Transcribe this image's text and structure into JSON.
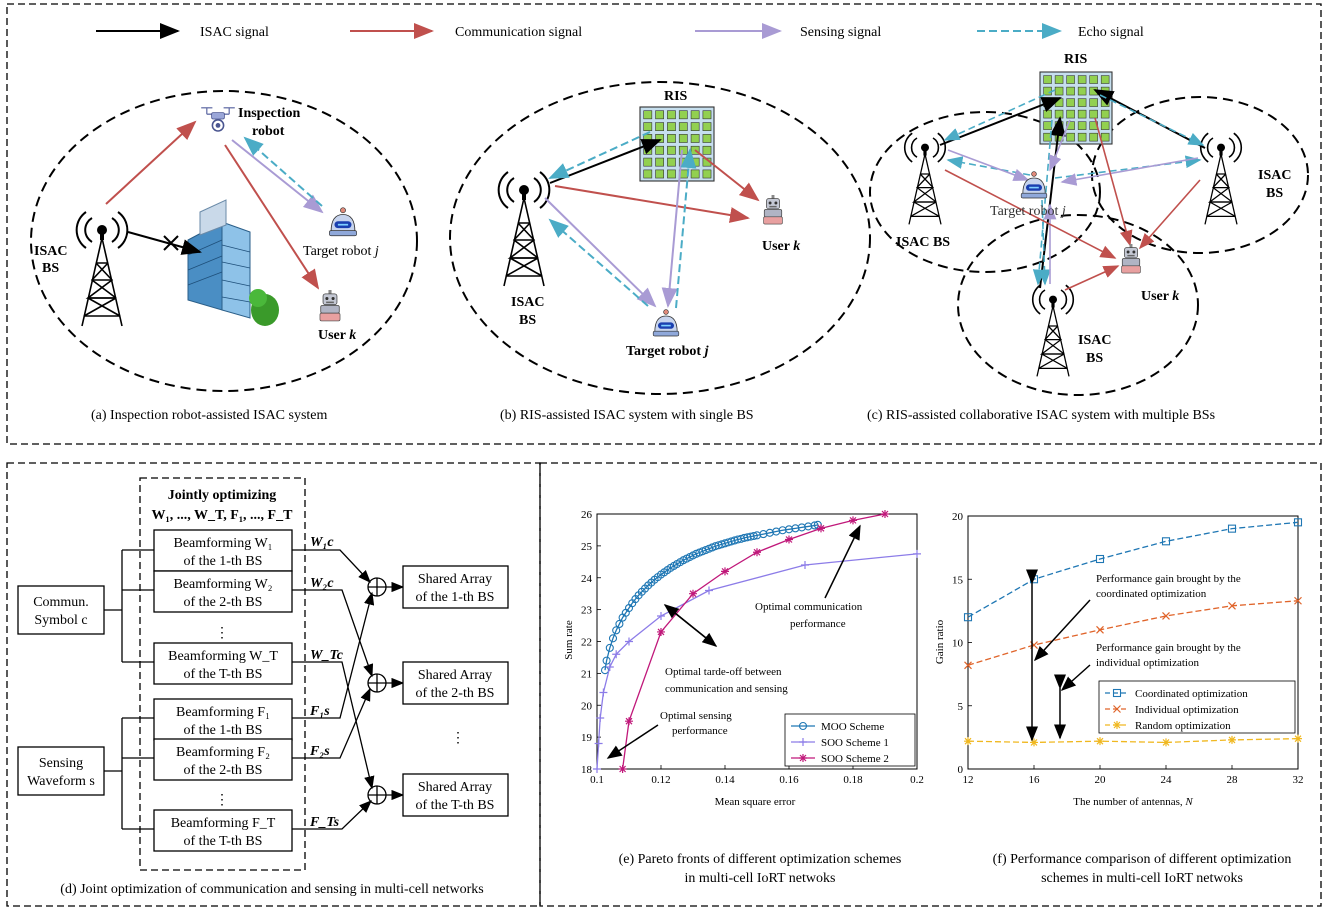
{
  "legend": {
    "isac": "ISAC signal",
    "comm": "Communication signal",
    "sensing": "Sensing signal",
    "echo": "Echo signal"
  },
  "colors": {
    "isac": "#000000",
    "comm": "#c0504d",
    "sensing": "#a99bd4",
    "echo": "#4bacc6",
    "ris_fill": "#92d050",
    "ris_bg": "#c6dfee",
    "moo": "#1f77b4",
    "soo1": "#8c7ce8",
    "soo2": "#c0187a",
    "coord": "#1f77b4",
    "indiv": "#e0642a",
    "random": "#f0b820"
  },
  "panel_a": {
    "inspection_label_1": "Inspection",
    "inspection_label_2": "robot",
    "bs_label_1": "ISAC",
    "bs_label_2": "BS",
    "target": "Target robot",
    "target_var": "j",
    "user": "User",
    "user_var": "k",
    "caption": "(a) Inspection robot-assisted ISAC system"
  },
  "panel_b": {
    "ris": "RIS",
    "bs_label_1": "ISAC",
    "bs_label_2": "BS",
    "user": "User",
    "user_var": "k",
    "target": "Target robot",
    "target_var": "j",
    "caption": "(b) RIS-assisted ISAC system with single BS"
  },
  "panel_c": {
    "ris": "RIS",
    "bs_left": "ISAC BS",
    "bs_right_1": "ISAC",
    "bs_right_2": "BS",
    "bs_bottom_1": "ISAC",
    "bs_bottom_2": "BS",
    "target": "Target robot",
    "target_var": "j",
    "user": "User",
    "user_var": "k",
    "caption": "(c) RIS-assisted collaborative ISAC system with multiple BSs"
  },
  "panel_d": {
    "jointly_1": "Jointly optimizing",
    "jointly_2": "W₁, ..., W_T, F₁, ..., F_T",
    "comm_sym_1": "Commun.",
    "comm_sym_2": "Symbol c",
    "sens_wave_1": "Sensing",
    "sens_wave_2": "Waveform s",
    "bf_blocks": [
      {
        "l1": "Beamforming W₁",
        "l2": "of the 1-th BS",
        "out": "W₁c"
      },
      {
        "l1": "Beamforming W₂",
        "l2": "of the 2-th BS",
        "out": "W₂c"
      },
      {
        "l1": "Beamforming W_T",
        "l2": "of the T-th BS",
        "out": "W_Tc"
      },
      {
        "l1": "Beamforming F₁",
        "l2": "of the 1-th BS",
        "out": "F₁s"
      },
      {
        "l1": "Beamforming F₂",
        "l2": "of the 2-th BS",
        "out": "F₂s"
      },
      {
        "l1": "Beamforming F_T",
        "l2": "of the T-th BS",
        "out": "F_Ts"
      }
    ],
    "arrays": [
      {
        "l1": "Shared Array",
        "l2": "of the 1-th BS"
      },
      {
        "l1": "Shared Array",
        "l2": "of the 2-th BS"
      },
      {
        "l1": "Shared Array",
        "l2": "of the T-th BS"
      }
    ],
    "caption": "(d) Joint optimization of communication and sensing in multi-cell networks"
  },
  "panel_e": {
    "caption_1": "(e) Pareto fronts of different optimization schemes",
    "caption_2": "in multi-cell IoRT netwoks",
    "annot_comm_1": "Optimal communication",
    "annot_comm_2": "performance",
    "annot_trade_1": "Optimal tarde-off between",
    "annot_trade_2": "communication and sensing",
    "annot_sens_1": "Optimal sensing",
    "annot_sens_2": "performance"
  },
  "panel_f": {
    "caption_1": "(f) Performance comparison of different optimization",
    "caption_2": "schemes in multi-cell IoRT netwoks",
    "annot_coord_1": "Performance gain brought by the",
    "annot_coord_2": "coordinated optimization",
    "annot_indiv_1": "Performance gain brought by the",
    "annot_indiv_2": "individual optimization"
  },
  "chart_data": [
    {
      "type": "line",
      "xlabel": "Mean square error",
      "ylabel": "Sum rate",
      "xlim": [
        0.1,
        0.2
      ],
      "ylim": [
        18,
        26
      ],
      "xticks": [
        "0.1",
        "0.12",
        "0.14",
        "0.16",
        "0.18",
        "0.2"
      ],
      "yticks": [
        "18",
        "19",
        "20",
        "21",
        "22",
        "23",
        "24",
        "25",
        "26"
      ],
      "legend_position": "bottom-right",
      "series": [
        {
          "name": "MOO Scheme",
          "x": [
            0.1025,
            0.103,
            0.104,
            0.105,
            0.106,
            0.107,
            0.108,
            0.109,
            0.11,
            0.111,
            0.112,
            0.113,
            0.114,
            0.115,
            0.116,
            0.117,
            0.118,
            0.119,
            0.12,
            0.121,
            0.122,
            0.123,
            0.124,
            0.125,
            0.126,
            0.127,
            0.128,
            0.129,
            0.13,
            0.131,
            0.132,
            0.133,
            0.134,
            0.135,
            0.136,
            0.137,
            0.138,
            0.139,
            0.14,
            0.141,
            0.142,
            0.143,
            0.144,
            0.145,
            0.146,
            0.147,
            0.148,
            0.149,
            0.15,
            0.152,
            0.154,
            0.156,
            0.158,
            0.16,
            0.162,
            0.164,
            0.166,
            0.168,
            0.169
          ],
          "y": [
            21.1,
            21.4,
            21.8,
            22.1,
            22.35,
            22.55,
            22.75,
            22.9,
            23.05,
            23.2,
            23.33,
            23.45,
            23.56,
            23.66,
            23.76,
            23.85,
            23.94,
            24.02,
            24.1,
            24.17,
            24.24,
            24.31,
            24.37,
            24.43,
            24.49,
            24.55,
            24.6,
            24.65,
            24.7,
            24.75,
            24.79,
            24.83,
            24.87,
            24.91,
            24.95,
            24.99,
            25.02,
            25.05,
            25.08,
            25.11,
            25.14,
            25.17,
            25.2,
            25.22,
            25.25,
            25.27,
            25.29,
            25.31,
            25.33,
            25.37,
            25.41,
            25.45,
            25.49,
            25.52,
            25.55,
            25.58,
            25.61,
            25.64,
            25.66
          ]
        },
        {
          "name": "SOO Scheme 1",
          "x": [
            0.1,
            0.1005,
            0.101,
            0.102,
            0.104,
            0.106,
            0.11,
            0.12,
            0.135,
            0.165,
            0.2
          ],
          "y": [
            18.0,
            18.8,
            19.6,
            20.4,
            21.2,
            21.6,
            22.0,
            22.8,
            23.6,
            24.4,
            24.75
          ]
        },
        {
          "name": "SOO Scheme 2",
          "x": [
            0.108,
            0.11,
            0.12,
            0.13,
            0.14,
            0.15,
            0.16,
            0.17,
            0.18,
            0.19
          ],
          "y": [
            18.0,
            19.5,
            22.3,
            23.5,
            24.2,
            24.8,
            25.2,
            25.55,
            25.8,
            26.0
          ]
        }
      ]
    },
    {
      "type": "line",
      "xlabel": "The number of antennas, N",
      "ylabel": "Gain ratio",
      "xlim": [
        12,
        32
      ],
      "ylim": [
        0,
        20
      ],
      "xticks": [
        "12",
        "16",
        "20",
        "24",
        "28",
        "32"
      ],
      "yticks": [
        "0",
        "5",
        "10",
        "15",
        "20"
      ],
      "legend_position": "bottom-right",
      "series": [
        {
          "name": "Coordinated optimization",
          "x": [
            12,
            16,
            20,
            24,
            28,
            32
          ],
          "y": [
            12.0,
            15.0,
            16.6,
            18.0,
            19.0,
            19.5
          ]
        },
        {
          "name": "Individual optimization",
          "x": [
            12,
            16,
            20,
            24,
            28,
            32
          ],
          "y": [
            8.2,
            9.8,
            11.0,
            12.1,
            12.9,
            13.3
          ]
        },
        {
          "name": "Random optimization",
          "x": [
            12,
            16,
            20,
            24,
            28,
            32
          ],
          "y": [
            2.2,
            2.1,
            2.2,
            2.1,
            2.3,
            2.4
          ]
        }
      ]
    }
  ]
}
